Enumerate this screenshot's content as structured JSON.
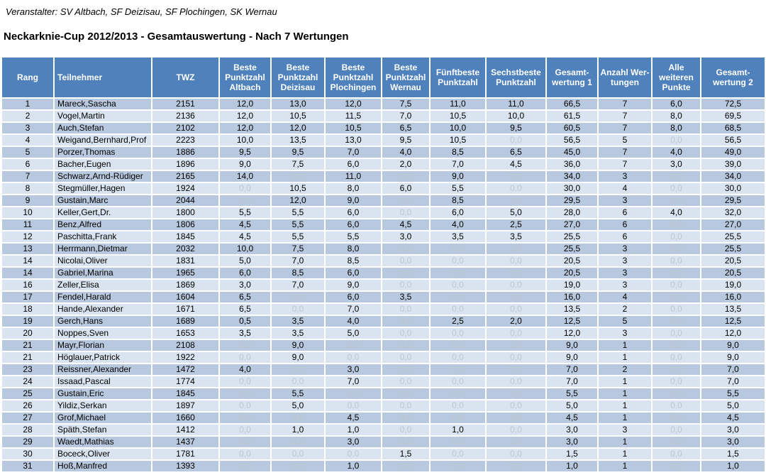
{
  "organizer_line": "Veranstalter: SV Altbach, SF Deizisau, SF Plochingen, SK Wernau",
  "title": "Neckarknie-Cup 2012/2013 - Gesamtauswertung - Nach 7 Wertungen",
  "colors": {
    "header_bg": "#4F81BD",
    "row_odd": "#B8C8DE",
    "row_even": "#DAE4F0",
    "zero_text": "#BDC5D0",
    "header_text": "#FFFFFF"
  },
  "table": {
    "headers": [
      "Rang",
      "Teilnehmer",
      "TWZ",
      "Beste Punktzahl Altbach",
      "Beste Punktzahl Deizisau",
      "Beste Punktzahl Plochingen",
      "Beste Punktzahl Wernau",
      "Fünftbeste Punktzahl",
      "Sechstbeste Punktzahl",
      "Gesamt-wertung 1",
      "Anzahl Wer-tungen",
      "Alle weiteren Punkte",
      "Gesamt-wertung 2"
    ],
    "rows": [
      [
        "1",
        "Mareck,Sascha",
        "2151",
        "12,0",
        "13,0",
        "12,0",
        "7,5",
        "11,0",
        "11,0",
        "66,5",
        "7",
        "6,0",
        "72,5"
      ],
      [
        "2",
        "Vogel,Martin",
        "2136",
        "12,0",
        "10,5",
        "11,5",
        "7,0",
        "10,5",
        "10,0",
        "61,5",
        "7",
        "8,0",
        "69,5"
      ],
      [
        "3",
        "Auch,Stefan",
        "2102",
        "12,0",
        "12,0",
        "10,5",
        "6,5",
        "10,0",
        "9,5",
        "60,5",
        "7",
        "8,0",
        "68,5"
      ],
      [
        "4",
        "Weigand,Bernhard,Prof",
        "2223",
        "10,0",
        "13,5",
        "13,0",
        "9,5",
        "10,5",
        "0,0",
        "56,5",
        "5",
        "0,0",
        "56,5"
      ],
      [
        "5",
        "Porzer,Thomas",
        "1886",
        "9,5",
        "9,5",
        "7,0",
        "4,0",
        "8,5",
        "6,5",
        "45,0",
        "7",
        "4,0",
        "49,0"
      ],
      [
        "6",
        "Bacher,Eugen",
        "1896",
        "9,0",
        "7,5",
        "6,0",
        "2,0",
        "7,0",
        "4,5",
        "36,0",
        "7",
        "3,0",
        "39,0"
      ],
      [
        "7",
        "Schwarz,Arnd-Rüdiger",
        "2165",
        "14,0",
        "0,0",
        "11,0",
        "0,0",
        "9,0",
        "0,0",
        "34,0",
        "3",
        "0,0",
        "34,0"
      ],
      [
        "8",
        "Stegmüller,Hagen",
        "1924",
        "0,0",
        "10,5",
        "8,0",
        "6,0",
        "5,5",
        "0,0",
        "30,0",
        "4",
        "0,0",
        "30,0"
      ],
      [
        "9",
        "Gustain,Marc",
        "2044",
        "0,0",
        "12,0",
        "9,0",
        "0,0",
        "8,5",
        "0,0",
        "29,5",
        "3",
        "0,0",
        "29,5"
      ],
      [
        "10",
        "Keller,Gert,Dr.",
        "1800",
        "5,5",
        "5,5",
        "6,0",
        "0,0",
        "6,0",
        "5,0",
        "28,0",
        "6",
        "4,0",
        "32,0"
      ],
      [
        "11",
        "Benz,Alfred",
        "1806",
        "4,5",
        "5,5",
        "6,0",
        "4,5",
        "4,0",
        "2,5",
        "27,0",
        "6",
        "0,0",
        "27,0"
      ],
      [
        "12",
        "Paschitta,Frank",
        "1845",
        "4,5",
        "5,5",
        "5,5",
        "3,0",
        "3,5",
        "3,5",
        "25,5",
        "6",
        "0,0",
        "25,5"
      ],
      [
        "13",
        "Herrmann,Dietmar",
        "2032",
        "10,0",
        "7,5",
        "8,0",
        "0,0",
        "0,0",
        "0,0",
        "25,5",
        "3",
        "0,0",
        "25,5"
      ],
      [
        "14",
        "Nicolai,Oliver",
        "1831",
        "5,0",
        "7,0",
        "8,5",
        "0,0",
        "0,0",
        "0,0",
        "20,5",
        "3",
        "0,0",
        "20,5"
      ],
      [
        "14",
        "Gabriel,Marina",
        "1965",
        "6,0",
        "8,5",
        "6,0",
        "0,0",
        "0,0",
        "0,0",
        "20,5",
        "3",
        "0,0",
        "20,5"
      ],
      [
        "16",
        "Zeller,Elisa",
        "1869",
        "3,0",
        "7,0",
        "9,0",
        "0,0",
        "0,0",
        "0,0",
        "19,0",
        "3",
        "0,0",
        "19,0"
      ],
      [
        "17",
        "Fendel,Harald",
        "1604",
        "6,5",
        "0,0",
        "6,0",
        "3,5",
        "0,0",
        "0,0",
        "16,0",
        "4",
        "0,0",
        "16,0"
      ],
      [
        "18",
        "Hande,Alexander",
        "1671",
        "6,5",
        "0,0",
        "7,0",
        "0,0",
        "0,0",
        "0,0",
        "13,5",
        "2",
        "0,0",
        "13,5"
      ],
      [
        "19",
        "Gerch,Hans",
        "1689",
        "0,5",
        "3,5",
        "4,0",
        "0,0",
        "2,5",
        "2,0",
        "12,5",
        "5",
        "0,0",
        "12,5"
      ],
      [
        "20",
        "Noppes,Sven",
        "1653",
        "3,5",
        "3,5",
        "5,0",
        "0,0",
        "0,0",
        "0,0",
        "12,0",
        "3",
        "0,0",
        "12,0"
      ],
      [
        "21",
        "Mayr,Florian",
        "2108",
        "0,0",
        "9,0",
        "0,0",
        "0,0",
        "0,0",
        "0,0",
        "9,0",
        "1",
        "0,0",
        "9,0"
      ],
      [
        "21",
        "Höglauer,Patrick",
        "1922",
        "0,0",
        "9,0",
        "0,0",
        "0,0",
        "0,0",
        "0,0",
        "9,0",
        "1",
        "0,0",
        "9,0"
      ],
      [
        "23",
        "Reissner,Alexander",
        "1472",
        "4,0",
        "0,0",
        "3,0",
        "0,0",
        "0,0",
        "0,0",
        "7,0",
        "2",
        "0,0",
        "7,0"
      ],
      [
        "24",
        "Issaad,Pascal",
        "1774",
        "0,0",
        "0,0",
        "7,0",
        "0,0",
        "0,0",
        "0,0",
        "7,0",
        "1",
        "0,0",
        "7,0"
      ],
      [
        "25",
        "Gustain,Eric",
        "1845",
        "0,0",
        "5,5",
        "0,0",
        "0,0",
        "0,0",
        "0,0",
        "5,5",
        "1",
        "0,0",
        "5,5"
      ],
      [
        "26",
        "Yildiz,Serkan",
        "1897",
        "0,0",
        "5,0",
        "0,0",
        "0,0",
        "0,0",
        "0,0",
        "5,0",
        "1",
        "0,0",
        "5,0"
      ],
      [
        "27",
        "Grof,Michael",
        "1660",
        "0,0",
        "0,0",
        "4,5",
        "0,0",
        "0,0",
        "0,0",
        "4,5",
        "1",
        "0,0",
        "4,5"
      ],
      [
        "28",
        "Späth,Stefan",
        "1412",
        "0,0",
        "1,0",
        "1,0",
        "0,0",
        "1,0",
        "0,0",
        "3,0",
        "3",
        "0,0",
        "3,0"
      ],
      [
        "29",
        "Waedt,Mathias",
        "1437",
        "0,0",
        "0,0",
        "3,0",
        "0,0",
        "0,0",
        "0,0",
        "3,0",
        "1",
        "0,0",
        "3,0"
      ],
      [
        "30",
        "Boceck,Oliver",
        "1781",
        "0,0",
        "0,0",
        "0,0",
        "1,5",
        "0,0",
        "0,0",
        "1,5",
        "1",
        "0,0",
        "1,5"
      ],
      [
        "31",
        "Hoß,Manfred",
        "1393",
        "0,0",
        "0,0",
        "1,0",
        "0,0",
        "0,0",
        "0,0",
        "1,0",
        "1",
        "0,0",
        "1,0"
      ]
    ]
  }
}
